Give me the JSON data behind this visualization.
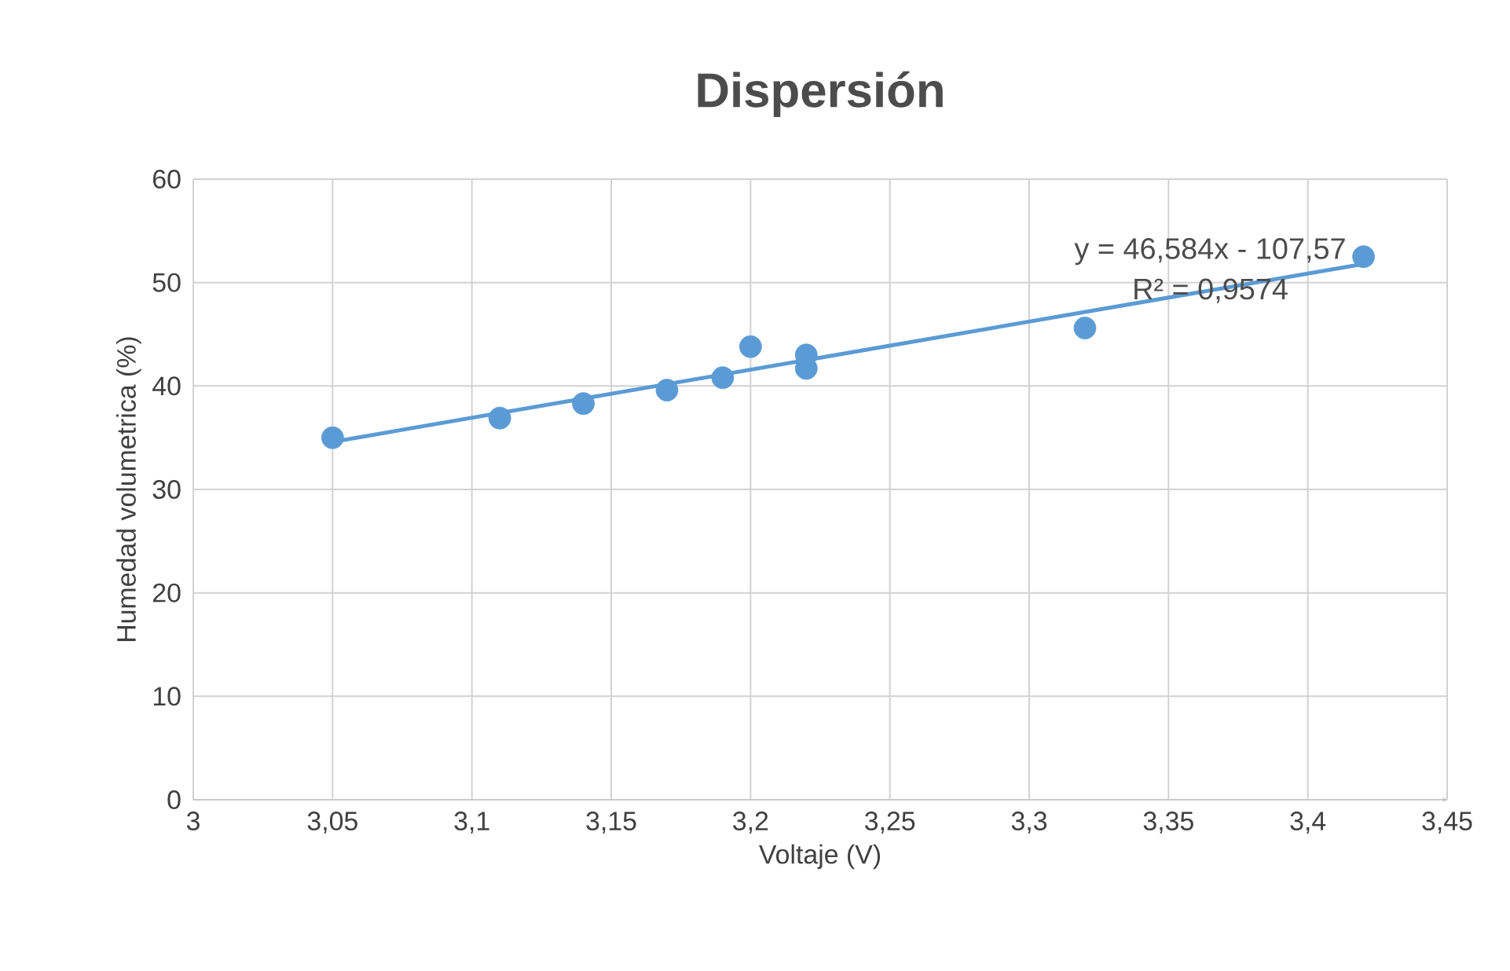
{
  "chart_data": {
    "type": "scatter",
    "title": "Dispersión",
    "xlabel": "Voltaje (V)",
    "ylabel": "Humedad volumetrica (%)",
    "xlim": [
      3,
      3.45
    ],
    "ylim": [
      0,
      60
    ],
    "xticks": [
      3,
      {
        "value": 3.05,
        "label": "3,05"
      },
      {
        "value": 3.1,
        "label": "3,1"
      },
      {
        "value": 3.15,
        "label": "3,15"
      },
      {
        "value": 3.2,
        "label": "3,2"
      },
      {
        "value": 3.25,
        "label": "3,25"
      },
      {
        "value": 3.3,
        "label": "3,3"
      },
      {
        "value": 3.35,
        "label": "3,35"
      },
      {
        "value": 3.4,
        "label": "3,4"
      },
      {
        "value": 3.45,
        "label": "3,45"
      }
    ],
    "yticks": [
      0,
      10,
      20,
      30,
      40,
      50,
      60
    ],
    "grid": true,
    "series": [
      {
        "type": "scatter",
        "marker": "circle",
        "color": "#5b9bd5",
        "x": [
          3.05,
          3.11,
          3.14,
          3.17,
          3.19,
          3.2,
          3.22,
          3.22,
          3.32,
          3.42
        ],
        "values": [
          35.0,
          36.9,
          38.3,
          39.6,
          40.8,
          43.8,
          43.0,
          41.7,
          45.6,
          52.5
        ]
      },
      {
        "type": "line",
        "marker": "none",
        "color": "#5b9bd5",
        "x": [
          3.05,
          3.42
        ],
        "values": [
          34.6,
          51.8
        ]
      }
    ],
    "annotations": [
      "y = 46,584x - 107,57",
      "R² = 0,9574"
    ]
  }
}
